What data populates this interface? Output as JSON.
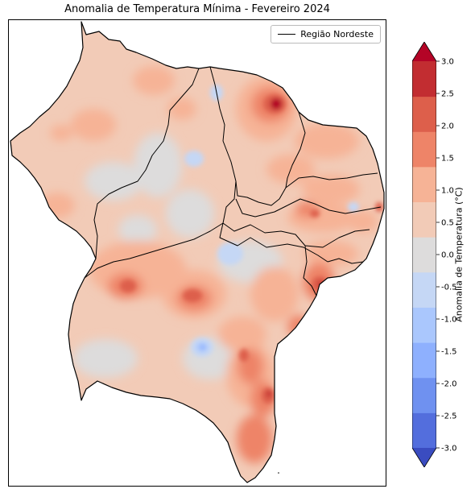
{
  "title": "Anomalia de Temperatura Mínima - Fevereiro 2024",
  "legend": {
    "entry": "Região Nordeste"
  },
  "colorbar": {
    "label": "Anomalia de Temperatura (°C)",
    "min": -3.0,
    "max": 3.0,
    "ticks": [
      "3.0",
      "2.5",
      "2.0",
      "1.5",
      "1.0",
      "0.5",
      "0.0",
      "-0.5",
      "-1.0",
      "-1.5",
      "-2.0",
      "-2.5",
      "-3.0"
    ],
    "colors": [
      "#3a4cc0",
      "#536edd",
      "#6f91f0",
      "#8eb0fe",
      "#aac7fd",
      "#c5d7f5",
      "#dddcdc",
      "#f2cbb7",
      "#f6b396",
      "#ee8468",
      "#dd5f4b",
      "#c22d31",
      "#b40426"
    ],
    "extend": "both"
  }
}
